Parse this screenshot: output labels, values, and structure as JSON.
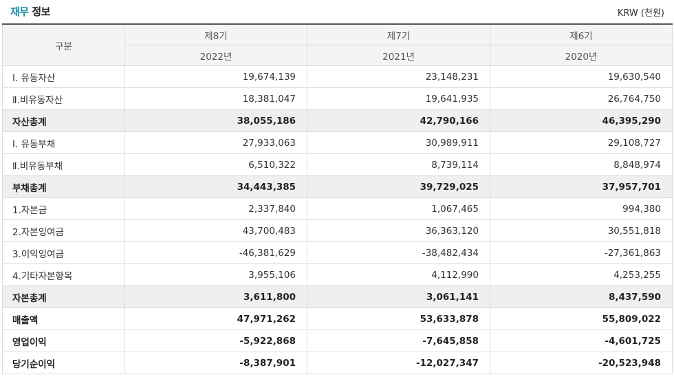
{
  "header": {
    "title_accent": "재무",
    "title_rest": " 정보",
    "unit": "KRW (천원)"
  },
  "table": {
    "label_header": "구분",
    "periods": [
      {
        "term": "제8기",
        "year": "2022년"
      },
      {
        "term": "제7기",
        "year": "2021년"
      },
      {
        "term": "제6기",
        "year": "2020년"
      }
    ],
    "rows": [
      {
        "label": "Ⅰ. 유동자산",
        "values": [
          "19,674,139",
          "23,148,231",
          "19,630,540"
        ],
        "style": "normal"
      },
      {
        "label": "Ⅱ.비유동자산",
        "values": [
          "18,381,047",
          "19,641,935",
          "26,764,750"
        ],
        "style": "normal"
      },
      {
        "label": "자산총계",
        "values": [
          "38,055,186",
          "42,790,166",
          "46,395,290"
        ],
        "style": "total"
      },
      {
        "label": "Ⅰ. 유동부채",
        "values": [
          "27,933,063",
          "30,989,911",
          "29,108,727"
        ],
        "style": "normal"
      },
      {
        "label": "Ⅱ.비유동부채",
        "values": [
          "6,510,322",
          "8,739,114",
          "8,848,974"
        ],
        "style": "normal"
      },
      {
        "label": "부채총계",
        "values": [
          "34,443,385",
          "39,729,025",
          "37,957,701"
        ],
        "style": "total"
      },
      {
        "label": "1.자본금",
        "values": [
          "2,337,840",
          "1,067,465",
          "994,380"
        ],
        "style": "normal"
      },
      {
        "label": "2.자본잉여금",
        "values": [
          "43,700,483",
          "36,363,120",
          "30,551,818"
        ],
        "style": "normal"
      },
      {
        "label": "3.이익잉여금",
        "values": [
          "-46,381,629",
          "-38,482,434",
          "-27,361,863"
        ],
        "style": "normal"
      },
      {
        "label": "4.기타자본항목",
        "values": [
          "3,955,106",
          "4,112,990",
          "4,253,255"
        ],
        "style": "normal"
      },
      {
        "label": "자본총계",
        "values": [
          "3,611,800",
          "3,061,141",
          "8,437,590"
        ],
        "style": "total"
      },
      {
        "label": "매출액",
        "values": [
          "47,971,262",
          "53,633,878",
          "55,809,022"
        ],
        "style": "bold"
      },
      {
        "label": "영업이익",
        "values": [
          "-5,922,868",
          "-7,645,858",
          "-4,601,725"
        ],
        "style": "bold"
      },
      {
        "label": "당기순이익",
        "values": [
          "-8,387,901",
          "-12,027,347",
          "-20,523,948"
        ],
        "style": "bold"
      }
    ]
  }
}
